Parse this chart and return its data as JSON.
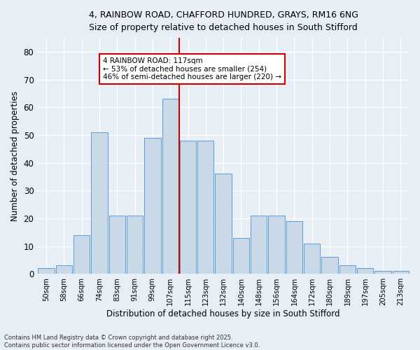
{
  "title_line1": "4, RAINBOW ROAD, CHAFFORD HUNDRED, GRAYS, RM16 6NG",
  "title_line2": "Size of property relative to detached houses in South Stifford",
  "xlabel": "Distribution of detached houses by size in South Stifford",
  "ylabel": "Number of detached properties",
  "bar_labels": [
    "50sqm",
    "58sqm",
    "66sqm",
    "74sqm",
    "83sqm",
    "91sqm",
    "99sqm",
    "107sqm",
    "115sqm",
    "123sqm",
    "132sqm",
    "140sqm",
    "148sqm",
    "156sqm",
    "164sqm",
    "172sqm",
    "180sqm",
    "189sqm",
    "197sqm",
    "205sqm",
    "213sqm"
  ],
  "bar_values": [
    2,
    3,
    14,
    51,
    21,
    21,
    49,
    63,
    48,
    48,
    36,
    13,
    21,
    21,
    19,
    11,
    6,
    3,
    2,
    1,
    1
  ],
  "bar_color": "#c9d9e8",
  "bar_edge_color": "#5b9bd5",
  "vline_color": "#cc0000",
  "ylim": [
    0,
    85
  ],
  "yticks": [
    0,
    10,
    20,
    30,
    40,
    50,
    60,
    70,
    80
  ],
  "annotation_title": "4 RAINBOW ROAD: 117sqm",
  "annotation_line2": "← 53% of detached houses are smaller (254)",
  "annotation_line3": "46% of semi-detached houses are larger (220) →",
  "annotation_box_color": "#cc0000",
  "footnote_line1": "Contains HM Land Registry data © Crown copyright and database right 2025.",
  "footnote_line2": "Contains public sector information licensed under the Open Government Licence v3.0.",
  "bg_color": "#e8eef5",
  "grid_color": "#ffffff"
}
